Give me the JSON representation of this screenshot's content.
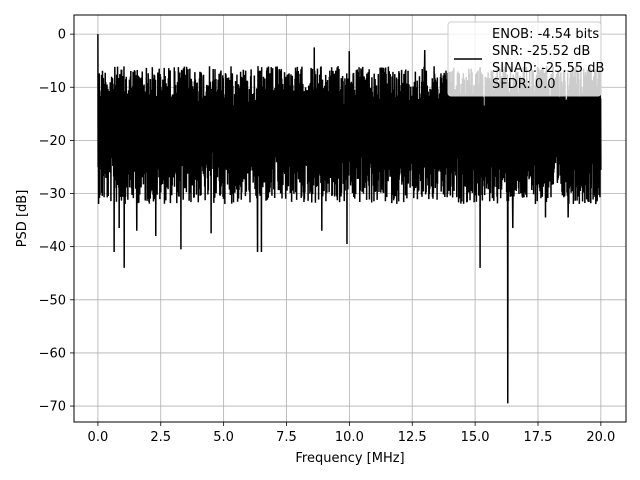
{
  "chart_data": {
    "type": "line",
    "title": "",
    "xlabel": "Frequency [MHz]",
    "ylabel": "PSD [dB]",
    "xlim": [
      -0.95,
      21.0
    ],
    "ylim": [
      -73.0,
      3.6
    ],
    "xticks": [
      0.0,
      2.5,
      5.0,
      7.5,
      10.0,
      12.5,
      15.0,
      17.5,
      20.0
    ],
    "xtick_labels": [
      "0.0",
      "2.5",
      "5.0",
      "7.5",
      "10.0",
      "12.5",
      "15.0",
      "17.5",
      "20.0"
    ],
    "yticks": [
      0,
      -10,
      -20,
      -30,
      -40,
      -50,
      -60,
      -70
    ],
    "ytick_labels": [
      "0",
      "−10",
      "−20",
      "−30",
      "−40",
      "−50",
      "−60",
      "−70"
    ],
    "grid": true,
    "line_color": "#000000",
    "legend_position": "top-right",
    "legend": [
      "ENOB: -4.54 bits",
      "SNR: -25.52 dB",
      "SINAD: -25.55 dB",
      "SFDR: 0.0"
    ],
    "series": [
      {
        "x_range": [
          0.0,
          20.0
        ],
        "noise_band_db": [
          -28.0,
          -6.0
        ],
        "peaks": [
          {
            "x": 0.0,
            "y": 0.0
          },
          {
            "x": 8.6,
            "y": -2.5
          },
          {
            "x": 10.0,
            "y": -3.2
          },
          {
            "x": 13.0,
            "y": -3.0
          }
        ],
        "dips": [
          {
            "x": 0.65,
            "y": -41.0
          },
          {
            "x": 0.85,
            "y": -36.5
          },
          {
            "x": 1.05,
            "y": -44.0
          },
          {
            "x": 1.55,
            "y": -37.0
          },
          {
            "x": 2.3,
            "y": -38.0
          },
          {
            "x": 3.3,
            "y": -40.5
          },
          {
            "x": 4.5,
            "y": -37.5
          },
          {
            "x": 6.35,
            "y": -41.0
          },
          {
            "x": 6.5,
            "y": -41.0
          },
          {
            "x": 8.9,
            "y": -37.0
          },
          {
            "x": 9.9,
            "y": -39.5
          },
          {
            "x": 15.2,
            "y": -44.0
          },
          {
            "x": 16.3,
            "y": -69.5
          },
          {
            "x": 16.5,
            "y": -36.5
          },
          {
            "x": 17.8,
            "y": -34.5
          },
          {
            "x": 18.7,
            "y": -34.5
          }
        ]
      }
    ]
  }
}
